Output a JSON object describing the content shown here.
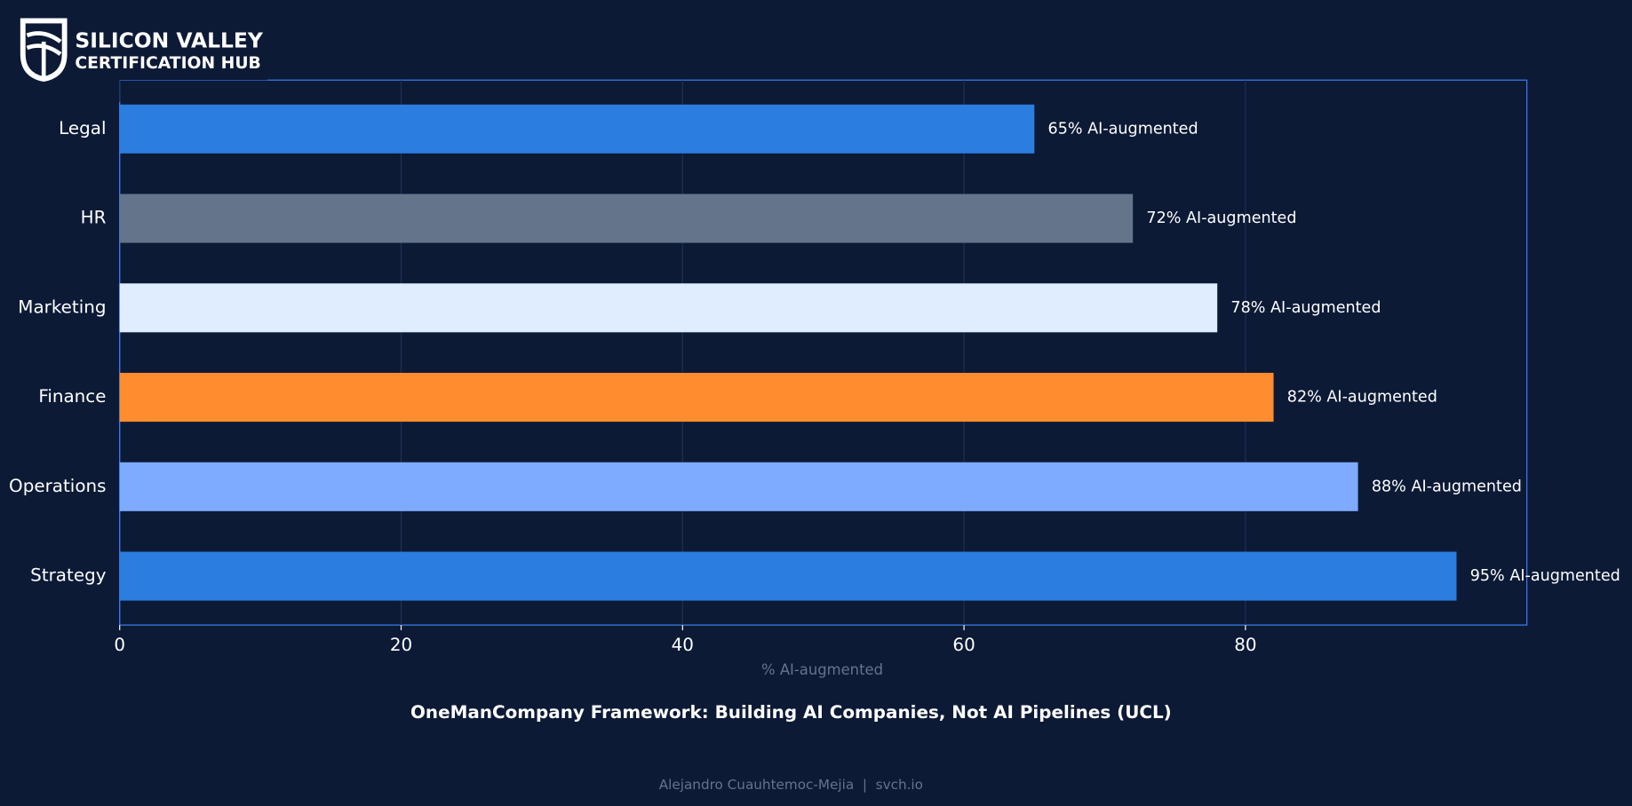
{
  "brand": {
    "line1": "SILICON VALLEY",
    "line2": "CERTIFICATION HUB"
  },
  "chart_data": {
    "type": "bar",
    "orientation": "horizontal",
    "title": "OneManCompany Framework: Building AI Companies, Not AI Pipelines (UCL)",
    "xlabel": "% AI-augmented",
    "categories": [
      "Legal",
      "HR",
      "Marketing",
      "Finance",
      "Operations",
      "Strategy"
    ],
    "values": [
      65,
      72,
      78,
      82,
      88,
      95
    ],
    "value_labels": [
      "65% AI-augmented",
      "72% AI-augmented",
      "78% AI-augmented",
      "82% AI-augmented",
      "88% AI-augmented",
      "95% AI-augmented"
    ],
    "colors": [
      "#2b7de0",
      "#64748b",
      "#e0edff",
      "#ff8c2e",
      "#7eaaff",
      "#2b7de0"
    ],
    "xlim": [
      0,
      100
    ],
    "xticks": [
      0,
      20,
      40,
      60,
      80
    ],
    "grid": true
  },
  "footer": "Alejandro Cuauhtemoc-Mejia  |  svch.io"
}
